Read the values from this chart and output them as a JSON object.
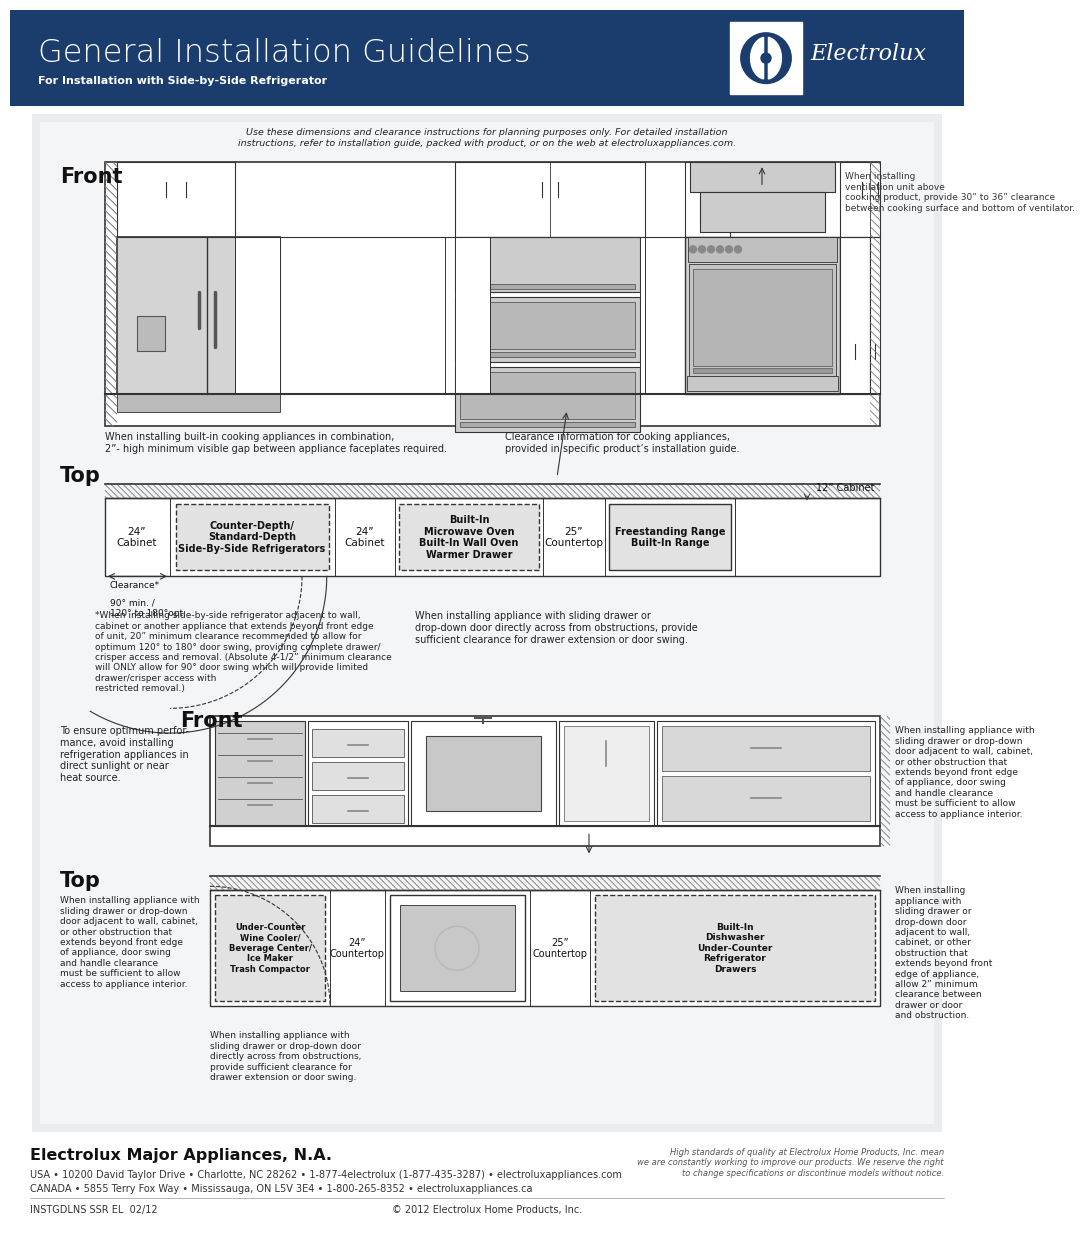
{
  "title": "General Installation Guidelines",
  "subtitle": "For Installation with Side-by-Side Refrigerator",
  "header_bg": "#1b3d6e",
  "header_text_color": "#ffffff",
  "body_bg": "#c8d0dc",
  "content_bg": "#e8eaee",
  "page_bg": "#ffffff",
  "company": "Electrolux",
  "footer_company": "Electrolux Major Appliances, N.A.",
  "footer_line1": "USA • 10200 David Taylor Drive • Charlotte, NC 28262 • 1-877-4electrolux (1-877-435-3287) • electroluxappliances.com",
  "footer_line2": "CANADA • 5855 Terry Fox Way • Mississauga, ON L5V 3E4 • 1-800-265-8352 • electroluxappliances.ca",
  "footer_left": "INSTGDLNS SSR EL  02/12",
  "footer_center": "© 2012 Electrolux Home Products, Inc.",
  "footer_right": "High standards of quality at Electrolux Home Products, Inc. mean\nwe are constantly working to improve our products. We reserve the right\nto change specifications or discontinue models without notice.",
  "notice_text": "Use these dimensions and clearance instructions for planning purposes only. For detailed installation\ninstructions, refer to installation guide, packed with product, or on the web at electroluxappliances.com.",
  "front_label": "Front",
  "top_label": "Top",
  "front2_label": "Front",
  "top2_label": "Top",
  "ventilation_note": "When installing\nventilation unit above\ncooking product, provide 30” to 36” clearance\nbetween cooking surface and bottom of ventilator.",
  "built_in_note": "When installing built-in cooking appliances in combination,\n2”- high minimum visible gap between appliance faceplates required.",
  "clearance_note": "Clearance information for cooking appliances,\nprovided in specific product’s installation guide.",
  "sbs_note": "*When installing side-by-side refrigerator adjacent to wall,\ncabinet or another appliance that extends beyond front edge\nof unit, 20” minimum clearance recommended to allow for\noptimum 120° to 180° door swing, providing complete drawer/\ncrisper access and removal. (Absolute 4-1/2” minimum clearance\nwill ONLY allow for 90° door swing which will provide limited\ndrawer/crisper access with\nrestricted removal.)",
  "sliding_note1": "When installing appliance with sliding drawer or\ndrop-down door directly across from obstructions, provide\nsufficient clearance for drawer extension or door swing.",
  "optimum_note": "To ensure optimum perfor-\nmance, avoid installing\nrefrigeration appliances in\ndirect sunlight or near\nheat source.",
  "sliding_note2": "When installing appliance with\nsliding drawer or drop-down\ndoor adjacent to wall, cabinet,\nor other obstruction that\nextends beyond front edge\nof appliance, door swing\nand handle clearance\nmust be sufficient to allow\naccess to appliance interior.",
  "sliding_note3": "When installing appliance with\nsliding drawer or drop-down door\ndirectly across from obstructions,\nprovide sufficient clearance for\ndrawer extension or door swing.",
  "sliding_note4": "When installing\nappliance with\nsliding drawer or\ndrop-down door\nadjacent to wall,\ncabinet, or other\nobstruction that\nextends beyond front\nedge of appliance,\nallow 2” minimum\nclearance between\ndrawer or door\nand obstruction.",
  "top_labels_counter_depth": "Counter-Depth/\nStandard-Depth\nSide-By-Side Refrigerators",
  "top_labels_built_in_micro": "Built-In\nMicrowave Oven\nBuilt-In Wall Oven\nWarmer Drawer",
  "top_labels_freestanding": "Freestanding Range\nBuilt-In Range",
  "top_labels_dim_24_left": "24”\nCabinet",
  "top_labels_dim_24_right": "24”\nCabinet",
  "top_labels_dim_25": "25”\nCountertop",
  "top_labels_dim_12": "12” Cabinet",
  "top_labels_clearance": "Clearance*",
  "top_labels_angle": "90° min. /\n120° to 180°opt.",
  "top2_under_counter": "Under-Counter\nWine Cooler/\nBeverage Center/\nIce Maker\nTrash Compactor",
  "top2_dishwasher": "Built-In\nDishwasher\nUnder-Counter\nRefrigerator\nDrawers",
  "top2_dim_24": "24”\nCountertop",
  "top2_dim_25": "25”\nCountertop"
}
